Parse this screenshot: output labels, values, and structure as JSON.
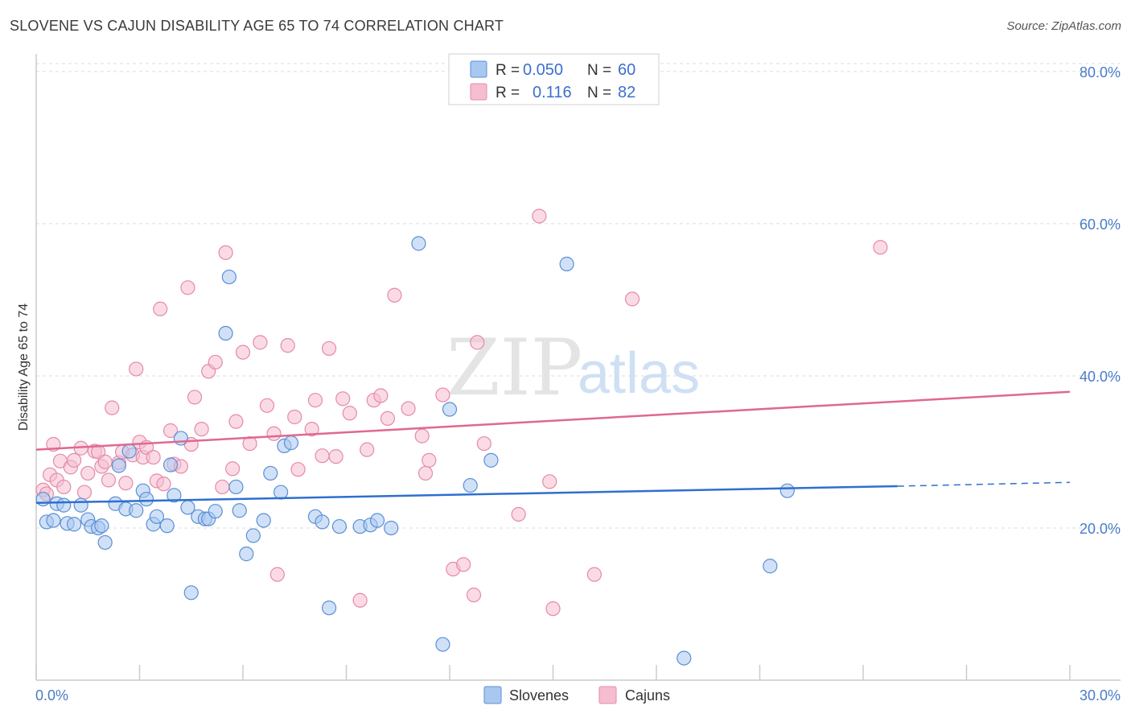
{
  "title": "SLOVENE VS CAJUN DISABILITY AGE 65 TO 74 CORRELATION CHART",
  "source": "Source: ZipAtlas.com",
  "watermark": {
    "zip": "ZIP",
    "atlas": "atlas"
  },
  "colors": {
    "slovene_fill": "#a9c8f0",
    "slovene_stroke": "#5b8fd6",
    "slovene_line": "#2f6fcf",
    "cajun_fill": "#f6bdd0",
    "cajun_stroke": "#e58aa8",
    "cajun_line": "#e0688f",
    "tick_text": "#4a7cc7",
    "grid": "#dddddd"
  },
  "legend": {
    "r_label": "R =",
    "n_label": "N =",
    "rows": [
      {
        "r": "0.050",
        "n": "60"
      },
      {
        "r": "0.116",
        "n": "82"
      }
    ]
  },
  "chart_data": {
    "type": "scatter",
    "title": "SLOVENE VS CAJUN DISABILITY AGE 65 TO 74 CORRELATION CHART",
    "xlabel": "",
    "ylabel": "Disability Age 65 to 74",
    "xlim": [
      0,
      30
    ],
    "ylim": [
      0,
      82
    ],
    "x_tick_labels": [
      "0.0%",
      "30.0%"
    ],
    "y_ticks": [
      20,
      40,
      60,
      80
    ],
    "y_tick_labels": [
      "20.0%",
      "40.0%",
      "60.0%",
      "80.0%"
    ],
    "series": [
      {
        "name": "Slovenes",
        "r": 0.05,
        "n": 60,
        "trend": {
          "x0": 0,
          "y0": 23.3,
          "x1": 25,
          "y1": 25.5,
          "dashed_to_x": 30,
          "dashed_to_y": 26.0
        },
        "points": [
          [
            0.2,
            23.8
          ],
          [
            0.3,
            20.8
          ],
          [
            0.5,
            21.0
          ],
          [
            0.6,
            23.2
          ],
          [
            0.8,
            23.0
          ],
          [
            0.9,
            20.6
          ],
          [
            1.1,
            20.5
          ],
          [
            1.3,
            23.0
          ],
          [
            1.5,
            21.1
          ],
          [
            1.6,
            20.2
          ],
          [
            1.8,
            20.0
          ],
          [
            1.9,
            20.3
          ],
          [
            2.0,
            18.1
          ],
          [
            2.3,
            23.2
          ],
          [
            2.4,
            28.2
          ],
          [
            2.6,
            22.5
          ],
          [
            2.7,
            30.1
          ],
          [
            2.9,
            22.3
          ],
          [
            3.1,
            24.9
          ],
          [
            3.2,
            23.8
          ],
          [
            3.4,
            20.5
          ],
          [
            3.5,
            21.5
          ],
          [
            3.8,
            20.3
          ],
          [
            3.9,
            28.3
          ],
          [
            4.0,
            24.3
          ],
          [
            4.2,
            31.8
          ],
          [
            4.4,
            22.7
          ],
          [
            4.5,
            11.5
          ],
          [
            4.7,
            21.5
          ],
          [
            4.9,
            21.2
          ],
          [
            5.0,
            21.2
          ],
          [
            5.2,
            22.2
          ],
          [
            5.5,
            45.6
          ],
          [
            5.6,
            53.0
          ],
          [
            5.8,
            25.4
          ],
          [
            5.9,
            22.3
          ],
          [
            6.1,
            16.6
          ],
          [
            6.3,
            19.0
          ],
          [
            6.6,
            21.0
          ],
          [
            6.8,
            27.2
          ],
          [
            7.1,
            24.7
          ],
          [
            7.2,
            30.8
          ],
          [
            7.4,
            31.2
          ],
          [
            8.1,
            21.5
          ],
          [
            8.3,
            20.8
          ],
          [
            8.5,
            9.5
          ],
          [
            8.8,
            20.2
          ],
          [
            9.4,
            20.2
          ],
          [
            9.7,
            20.4
          ],
          [
            9.9,
            21.0
          ],
          [
            10.3,
            20.0
          ],
          [
            11.1,
            57.4
          ],
          [
            11.8,
            4.7
          ],
          [
            12.0,
            35.6
          ],
          [
            12.6,
            25.6
          ],
          [
            13.2,
            28.9
          ],
          [
            15.4,
            54.7
          ],
          [
            18.8,
            2.9
          ],
          [
            21.3,
            15.0
          ],
          [
            21.8,
            24.9
          ]
        ]
      },
      {
        "name": "Cajuns",
        "r": 0.116,
        "n": 82,
        "trend": {
          "x0": 0,
          "y0": 30.3,
          "x1": 30,
          "y1": 37.9
        },
        "points": [
          [
            0.2,
            25.0
          ],
          [
            0.3,
            24.5
          ],
          [
            0.4,
            27.0
          ],
          [
            0.5,
            31.0
          ],
          [
            0.6,
            26.3
          ],
          [
            0.7,
            28.8
          ],
          [
            0.8,
            25.4
          ],
          [
            1.0,
            28.0
          ],
          [
            1.1,
            28.9
          ],
          [
            1.3,
            30.5
          ],
          [
            1.4,
            24.7
          ],
          [
            1.5,
            27.2
          ],
          [
            1.7,
            30.1
          ],
          [
            1.8,
            30.0
          ],
          [
            1.9,
            28.1
          ],
          [
            2.0,
            28.7
          ],
          [
            2.1,
            26.3
          ],
          [
            2.2,
            35.8
          ],
          [
            2.4,
            28.6
          ],
          [
            2.5,
            30.0
          ],
          [
            2.6,
            25.9
          ],
          [
            2.8,
            29.6
          ],
          [
            2.9,
            40.9
          ],
          [
            3.0,
            31.3
          ],
          [
            3.1,
            29.3
          ],
          [
            3.2,
            30.6
          ],
          [
            3.4,
            29.3
          ],
          [
            3.5,
            26.2
          ],
          [
            3.6,
            48.8
          ],
          [
            3.7,
            25.8
          ],
          [
            3.9,
            32.8
          ],
          [
            4.0,
            28.4
          ],
          [
            4.2,
            28.1
          ],
          [
            4.4,
            51.6
          ],
          [
            4.5,
            31.0
          ],
          [
            4.6,
            37.2
          ],
          [
            4.8,
            33.0
          ],
          [
            5.0,
            40.6
          ],
          [
            5.2,
            41.8
          ],
          [
            5.4,
            25.4
          ],
          [
            5.5,
            56.2
          ],
          [
            5.7,
            27.8
          ],
          [
            5.8,
            34.0
          ],
          [
            6.0,
            43.1
          ],
          [
            6.2,
            31.1
          ],
          [
            6.5,
            44.4
          ],
          [
            6.7,
            36.1
          ],
          [
            6.9,
            32.4
          ],
          [
            7.0,
            13.9
          ],
          [
            7.3,
            44.0
          ],
          [
            7.5,
            34.6
          ],
          [
            7.6,
            27.7
          ],
          [
            8.0,
            33.0
          ],
          [
            8.1,
            36.8
          ],
          [
            8.3,
            29.5
          ],
          [
            8.5,
            43.6
          ],
          [
            8.7,
            29.4
          ],
          [
            8.9,
            37.0
          ],
          [
            9.1,
            35.1
          ],
          [
            9.4,
            10.5
          ],
          [
            9.6,
            30.3
          ],
          [
            9.8,
            36.8
          ],
          [
            10.0,
            37.4
          ],
          [
            10.2,
            34.4
          ],
          [
            10.4,
            50.6
          ],
          [
            10.8,
            35.7
          ],
          [
            11.2,
            32.1
          ],
          [
            11.3,
            27.2
          ],
          [
            11.4,
            28.9
          ],
          [
            11.8,
            37.5
          ],
          [
            12.1,
            14.6
          ],
          [
            12.4,
            15.2
          ],
          [
            12.7,
            11.2
          ],
          [
            12.8,
            44.4
          ],
          [
            13.0,
            31.1
          ],
          [
            14.0,
            21.8
          ],
          [
            14.6,
            61.0
          ],
          [
            14.9,
            26.1
          ],
          [
            15.0,
            9.4
          ],
          [
            16.2,
            13.9
          ],
          [
            17.3,
            50.1
          ],
          [
            24.5,
            56.9
          ]
        ]
      }
    ]
  }
}
